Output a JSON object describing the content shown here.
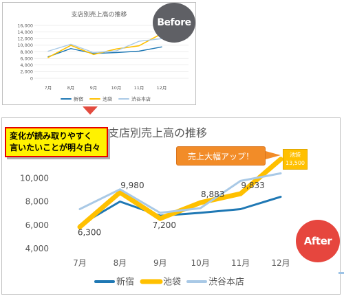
{
  "badges": {
    "before": "Before",
    "after": "After"
  },
  "callout": {
    "line1": "変化が読み取りやすく",
    "line2": "言いたいことが明々白々"
  },
  "annotation": "売上大幅アップ！",
  "peak_label": {
    "series": "池袋",
    "value": "13,500"
  },
  "colors": {
    "shinjuku": "#1f78b4",
    "ikebukuro": "#ffc000",
    "shibuya": "#a9c9e6",
    "before_arrow": "#e34b3f"
  },
  "chart_data": [
    {
      "id": "before",
      "type": "line",
      "title": "支店別売上高の推移",
      "categories": [
        "7月",
        "8月",
        "9月",
        "10月",
        "11月",
        "12月"
      ],
      "yticks": [
        "0",
        "2,000",
        "4,000",
        "6,000",
        "8,000",
        "10,000",
        "12,000",
        "14,000",
        "16,000"
      ],
      "ylim": [
        0,
        16000
      ],
      "grid": true,
      "legend": "bottom",
      "series": [
        {
          "name": "新宿",
          "values": [
            6500,
            9000,
            7500,
            7800,
            8200,
            9500
          ]
        },
        {
          "name": "池袋",
          "values": [
            6300,
            9980,
            7200,
            8883,
            9833,
            13500
          ]
        },
        {
          "name": "渋谷本店",
          "values": [
            8200,
            10300,
            7800,
            8300,
            11200,
            12000
          ]
        }
      ]
    },
    {
      "id": "after",
      "type": "line",
      "title": "支店別売上高の推移",
      "categories": [
        "7月",
        "8月",
        "9月",
        "10月",
        "11月",
        "12月"
      ],
      "yticks": [
        "4,000",
        "6,000",
        "8,000",
        "10,000",
        "12,000"
      ],
      "ylim": [
        4000,
        14000
      ],
      "grid": false,
      "legend": "bottom",
      "data_labels": [
        "6,300",
        "9,980",
        "7,200",
        "8,883",
        "9,833"
      ],
      "series": [
        {
          "name": "新宿",
          "values": [
            6500,
            9000,
            7500,
            7800,
            8200,
            9500
          ]
        },
        {
          "name": "池袋",
          "values": [
            6300,
            9980,
            7200,
            8883,
            9833,
            13500
          ]
        },
        {
          "name": "渋谷本店",
          "values": [
            8200,
            10300,
            7800,
            8300,
            11200,
            12000
          ]
        }
      ]
    }
  ]
}
